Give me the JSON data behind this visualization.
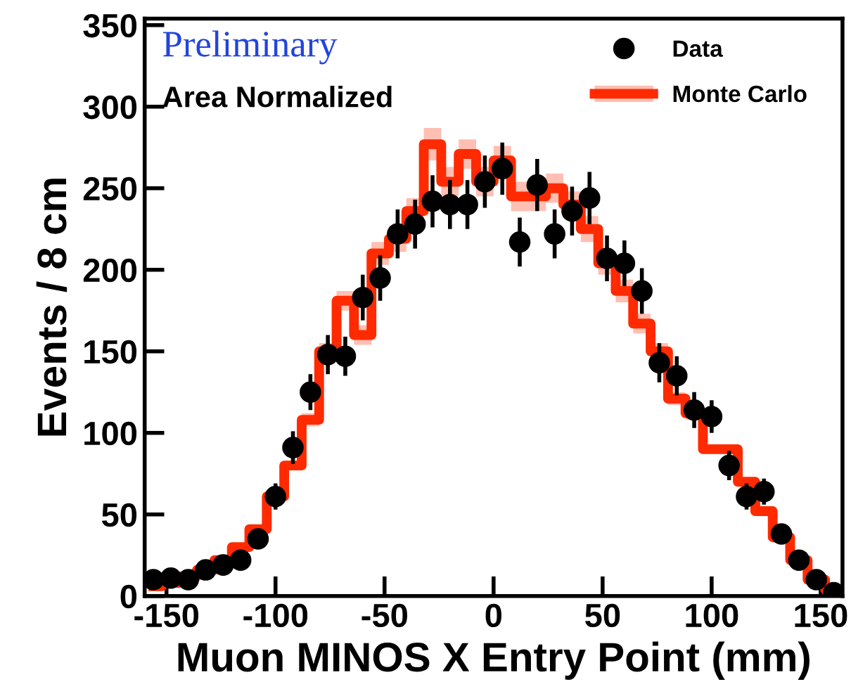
{
  "chart_data": {
    "type": "scatter",
    "xlabel": "Muon MINOS X Entry Point (mm)",
    "ylabel": "Events / 8 cm",
    "annotations": [
      "Preliminary",
      "Area Normalized"
    ],
    "xlim": [
      -160,
      160
    ],
    "xticks": [
      -150,
      -100,
      -50,
      0,
      50,
      100,
      150
    ],
    "ylim": [
      0,
      354
    ],
    "yticks": [
      0,
      50,
      100,
      150,
      200,
      250,
      300,
      350
    ],
    "grid": false,
    "legend": "top right",
    "series": [
      {
        "name": "Monte Carlo",
        "type": "step",
        "color": "#ff2a00",
        "x": [
          -156,
          -148,
          -140,
          -132,
          -124,
          -116,
          -108,
          -100,
          -92,
          -84,
          -76,
          -68,
          -60,
          -52,
          -44,
          -36,
          -28,
          -20,
          -12,
          -4,
          4,
          12,
          20,
          28,
          36,
          44,
          52,
          60,
          68,
          76,
          84,
          92,
          100,
          108,
          116,
          124,
          132,
          140,
          148,
          156
        ],
        "values": [
          6,
          8,
          12,
          16,
          22,
          30,
          41,
          61,
          80,
          108,
          150,
          181,
          160,
          210,
          219,
          236,
          277,
          254,
          271,
          254,
          267,
          245,
          245,
          250,
          240,
          225,
          204,
          187,
          167,
          150,
          121,
          112,
          90,
          90,
          70,
          52,
          36,
          22,
          10,
          4
        ],
        "lower": [
          4,
          6,
          10,
          14,
          20,
          28,
          39,
          59,
          77,
          104,
          145,
          175,
          154,
          203,
          211,
          228,
          267,
          245,
          262,
          245,
          258,
          236,
          236,
          241,
          232,
          217,
          197,
          180,
          161,
          145,
          117,
          108,
          87,
          87,
          68,
          50,
          34,
          20,
          8,
          2
        ],
        "upper": [
          8,
          10,
          14,
          18,
          24,
          32,
          43,
          63,
          83,
          112,
          155,
          187,
          166,
          217,
          227,
          244,
          287,
          263,
          280,
          263,
          276,
          254,
          254,
          259,
          248,
          233,
          211,
          194,
          173,
          155,
          125,
          116,
          93,
          93,
          72,
          54,
          38,
          24,
          12,
          6
        ]
      },
      {
        "name": "Data",
        "color": "#000000",
        "marker": "circle",
        "x": [
          -156,
          -148,
          -140,
          -132,
          -124,
          -116,
          -108,
          -100,
          -92,
          -84,
          -76,
          -68,
          -60,
          -52,
          -44,
          -36,
          -28,
          -20,
          -12,
          -4,
          4,
          12,
          20,
          28,
          36,
          44,
          52,
          60,
          68,
          76,
          84,
          92,
          100,
          108,
          116,
          124,
          132,
          140,
          148,
          156
        ],
        "values": [
          10,
          11,
          10,
          16,
          19,
          22,
          35,
          61,
          91,
          125,
          148,
          147,
          183,
          195,
          222,
          228,
          242,
          240,
          240,
          254,
          262,
          217,
          252,
          222,
          236,
          244,
          207,
          204,
          187,
          143,
          135,
          114,
          110,
          80,
          61,
          64,
          38,
          22,
          10,
          2
        ],
        "errors": [
          null,
          null,
          null,
          null,
          null,
          null,
          6,
          8,
          10,
          11,
          12,
          12,
          14,
          14,
          15,
          15,
          16,
          15,
          15,
          16,
          16,
          15,
          16,
          15,
          15,
          16,
          14,
          14,
          14,
          12,
          12,
          11,
          10,
          9,
          8,
          8,
          6,
          5,
          null,
          null
        ]
      }
    ]
  }
}
